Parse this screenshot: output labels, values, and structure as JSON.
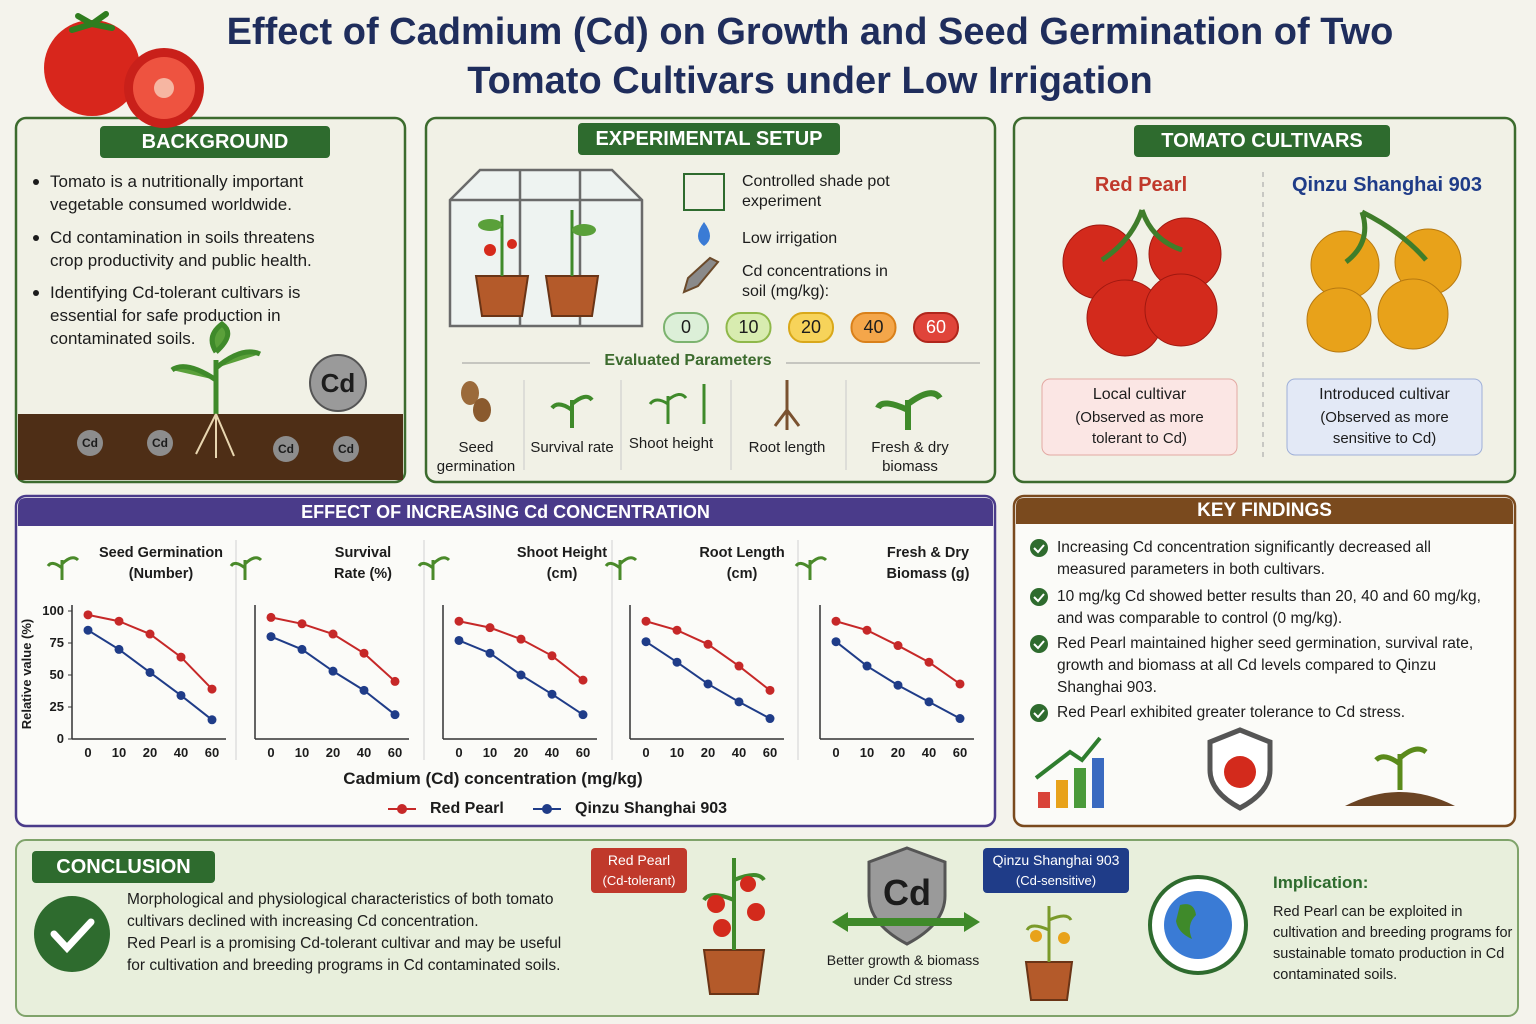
{
  "header": {
    "title": "Effect of Cadmium (Cd) on Growth and Seed Germination of Two Tomato Cultivars under Low Irrigation"
  },
  "background": {
    "title": "BACKGROUND",
    "bullets": [
      "Tomato is a nutritionally important vegetable consumed worldwide.",
      "Cd contamination in soils threatens crop productivity and public health.",
      "Identifying Cd-tolerant cultivars is essential for safe production in contaminated soils."
    ],
    "soil_label": "Cd"
  },
  "setup": {
    "title": "EXPERIMENTAL SETUP",
    "items": [
      "Controlled shade pot experiment",
      "Low irrigation",
      "Cd concentrations in soil (mg/kg):"
    ],
    "concentrations": [
      0,
      10,
      20,
      40,
      60
    ],
    "parameters_title": "Evaluated Parameters",
    "parameters": [
      "Seed germination",
      "Survival rate",
      "Shoot height",
      "Root length",
      "Fresh & dry biomass"
    ]
  },
  "cultivars": {
    "title": "TOMATO CULTIVARS",
    "items": [
      {
        "name": "Red Pearl",
        "type": "Local cultivar",
        "note": "(Observed as more tolerant to Cd)"
      },
      {
        "name": "Qinzu Shanghai 903",
        "type": "Introduced cultivar",
        "note": "(Observed as more sensitive to Cd)"
      }
    ]
  },
  "effect": {
    "title": "EFFECT OF INCREASING Cd CONCENTRATION",
    "y_label": "Relative value (%)",
    "x_label": "Cadmium (Cd) concentration (mg/kg)"
  },
  "chart_data": [
    {
      "type": "line",
      "title": "Seed Germination (Number)",
      "categories": [
        "0",
        "10",
        "20",
        "40",
        "60"
      ],
      "series": [
        {
          "name": "Red Pearl",
          "color": "#c62828",
          "values": [
            97,
            92,
            82,
            64,
            39
          ]
        },
        {
          "name": "Qinzu Shanghai 903",
          "color": "#1f3c88",
          "values": [
            85,
            70,
            52,
            34,
            15
          ]
        }
      ],
      "ylim": [
        0,
        100
      ],
      "yticks": [
        0,
        25,
        50,
        75,
        100
      ]
    },
    {
      "type": "line",
      "title": "Survival Rate (%)",
      "categories": [
        "0",
        "10",
        "20",
        "40",
        "60"
      ],
      "series": [
        {
          "name": "Red Pearl",
          "color": "#c62828",
          "values": [
            95,
            90,
            82,
            67,
            45
          ]
        },
        {
          "name": "Qinzu Shanghai 903",
          "color": "#1f3c88",
          "values": [
            80,
            70,
            53,
            38,
            19
          ]
        }
      ],
      "ylim": [
        0,
        100
      ]
    },
    {
      "type": "line",
      "title": "Shoot Height (cm)",
      "categories": [
        "0",
        "10",
        "20",
        "40",
        "60"
      ],
      "series": [
        {
          "name": "Red Pearl",
          "color": "#c62828",
          "values": [
            92,
            87,
            78,
            65,
            46
          ]
        },
        {
          "name": "Qinzu Shanghai 903",
          "color": "#1f3c88",
          "values": [
            77,
            67,
            50,
            35,
            19
          ]
        }
      ],
      "ylim": [
        0,
        100
      ]
    },
    {
      "type": "line",
      "title": "Root Length (cm)",
      "categories": [
        "0",
        "10",
        "20",
        "40",
        "60"
      ],
      "series": [
        {
          "name": "Red Pearl",
          "color": "#c62828",
          "values": [
            92,
            85,
            74,
            57,
            38
          ]
        },
        {
          "name": "Qinzu Shanghai 903",
          "color": "#1f3c88",
          "values": [
            76,
            60,
            43,
            29,
            16
          ]
        }
      ],
      "ylim": [
        0,
        100
      ]
    },
    {
      "type": "line",
      "title": "Fresh & Dry Biomass (g)",
      "categories": [
        "0",
        "10",
        "20",
        "40",
        "60"
      ],
      "series": [
        {
          "name": "Red Pearl",
          "color": "#c62828",
          "values": [
            92,
            85,
            73,
            60,
            43
          ]
        },
        {
          "name": "Qinzu Shanghai 903",
          "color": "#1f3c88",
          "values": [
            76,
            57,
            42,
            29,
            16
          ]
        }
      ],
      "ylim": [
        0,
        100
      ]
    }
  ],
  "findings": {
    "title": "KEY FINDINGS",
    "items": [
      "Increasing Cd concentration significantly decreased all measured parameters in both cultivars.",
      "10 mg/kg Cd showed better results than 20, 40 and 60 mg/kg, and was comparable to control (0 mg/kg).",
      "Red Pearl maintained higher seed germination, survival rate, growth and biomass at all Cd levels compared to Qinzu Shanghai 903.",
      "Red Pearl exhibited greater tolerance to Cd stress."
    ]
  },
  "conclusion": {
    "title": "CONCLUSION",
    "paragraphs": [
      "Morphological and physiological characteristics of both tomato cultivars declined with increasing Cd concentration.",
      "Red Pearl is a promising Cd-tolerant cultivar and may be useful for cultivation and breeding programs in Cd contaminated soils."
    ],
    "tolerant": {
      "name": "Red Pearl",
      "tag": "(Cd-tolerant)"
    },
    "sensitive": {
      "name": "Qinzu Shanghai 903",
      "tag": "(Cd-sensitive)"
    },
    "shield_label": "Cd",
    "arrow_text": "Better growth & biomass under Cd stress",
    "implication_title": "Implication:",
    "implication": "Red Pearl can be exploited in cultivation and breeding programs for sustainable tomato production in Cd contaminated soils."
  }
}
